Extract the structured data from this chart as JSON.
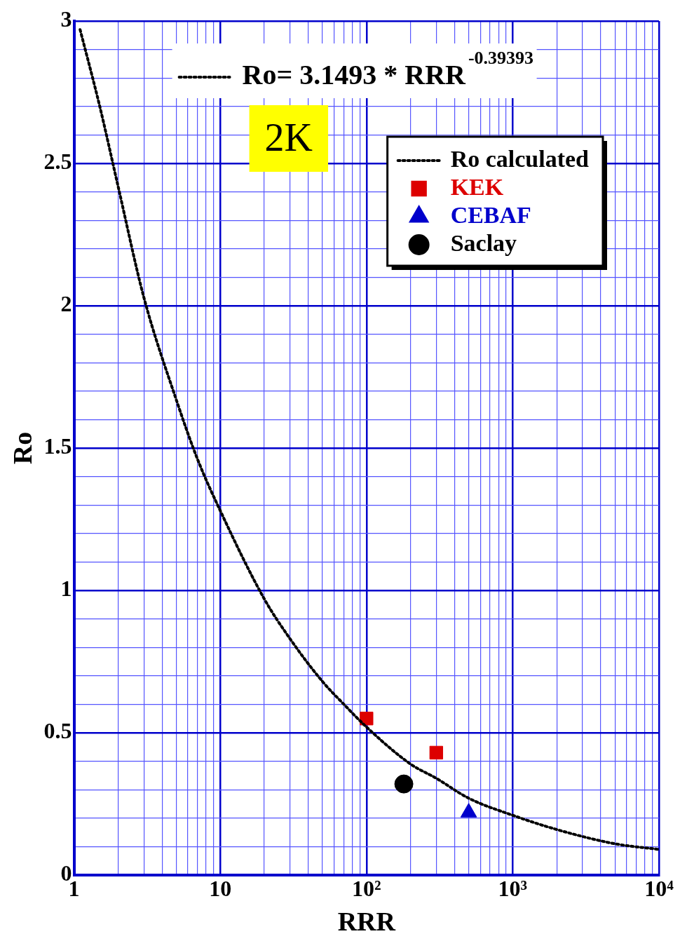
{
  "chart_data": {
    "type": "scatter",
    "xlabel": "RRR",
    "ylabel": "Ro",
    "log": "x",
    "grid": true,
    "legend": "top right",
    "annotations": [
      "Ro= 3.1493 * RRR$^{-0.39393}$",
      "2K"
    ],
    "xlim": [
      1,
      10000
    ],
    "xticks": [
      1,
      {
        "value": 2,
        "label": null
      },
      {
        "value": 3,
        "label": null
      },
      {
        "value": 4,
        "label": null
      },
      {
        "value": 5,
        "label": null
      },
      {
        "value": 6,
        "label": null
      },
      {
        "value": 7,
        "label": null
      },
      {
        "value": 8,
        "label": null
      },
      {
        "value": 9,
        "label": null
      },
      10,
      {
        "value": 20,
        "label": null
      },
      {
        "value": 30,
        "label": null
      },
      {
        "value": 40,
        "label": null
      },
      {
        "value": 50,
        "label": null
      },
      {
        "value": 60,
        "label": null
      },
      {
        "value": 70,
        "label": null
      },
      {
        "value": 80,
        "label": null
      },
      {
        "value": 90,
        "label": null
      },
      {
        "value": 100,
        "label": "10²"
      },
      {
        "value": 200,
        "label": null
      },
      {
        "value": 300,
        "label": null
      },
      {
        "value": 400,
        "label": null
      },
      {
        "value": 500,
        "label": null
      },
      {
        "value": 600,
        "label": null
      },
      {
        "value": 700,
        "label": null
      },
      {
        "value": 800,
        "label": null
      },
      {
        "value": 900,
        "label": null
      },
      {
        "value": 1000,
        "label": "10³"
      },
      {
        "value": 2000,
        "label": null
      },
      {
        "value": 3000,
        "label": null
      },
      {
        "value": 4000,
        "label": null
      },
      {
        "value": 5000,
        "label": null
      },
      {
        "value": 6000,
        "label": null
      },
      {
        "value": 7000,
        "label": null
      },
      {
        "value": 8000,
        "label": null
      },
      {
        "value": 9000,
        "label": null
      },
      {
        "value": 10000,
        "label": "10⁴"
      }
    ],
    "ylim": [
      0,
      3
    ],
    "yticks": [
      0,
      {
        "value": 0.1,
        "label": null
      },
      {
        "value": 0.2,
        "label": null
      },
      {
        "value": 0.3,
        "label": null
      },
      {
        "value": 0.4,
        "label": null
      },
      0.5,
      {
        "value": 0.6,
        "label": null
      },
      {
        "value": 0.7,
        "label": null
      },
      {
        "value": 0.8,
        "label": null
      },
      {
        "value": 0.9,
        "label": null
      },
      1,
      {
        "value": 1.1,
        "label": null
      },
      {
        "value": 1.2,
        "label": null
      },
      {
        "value": 1.3,
        "label": null
      },
      {
        "value": 1.4,
        "label": null
      },
      1.5,
      {
        "value": 1.6,
        "label": null
      },
      {
        "value": 1.7,
        "label": null
      },
      {
        "value": 1.8,
        "label": null
      },
      {
        "value": 1.9,
        "label": null
      },
      2,
      {
        "value": 2.1,
        "label": null
      },
      {
        "value": 2.2,
        "label": null
      },
      {
        "value": 2.3,
        "label": null
      },
      {
        "value": 2.4,
        "label": null
      },
      2.5,
      {
        "value": 2.6,
        "label": null
      },
      {
        "value": 2.7,
        "label": null
      },
      {
        "value": 2.8,
        "label": null
      },
      {
        "value": 2.9,
        "label": null
      },
      3
    ],
    "series": [
      {
        "name": "Ro calculated",
        "type": "line",
        "color": "#000000",
        "marker": "none",
        "line_style": "dotted",
        "x": [
          1.1,
          1.5,
          2,
          3,
          5,
          7,
          10,
          20,
          30,
          50,
          70,
          100,
          200,
          300,
          500,
          1000,
          2000,
          5000,
          10000
        ],
        "values": [
          2.97,
          2.7,
          2.42,
          2.03,
          1.67,
          1.46,
          1.28,
          0.97,
          0.83,
          0.68,
          0.6,
          0.52,
          0.39,
          0.34,
          0.27,
          0.21,
          0.16,
          0.11,
          0.09
        ]
      },
      {
        "name": "KEK",
        "color": "#dd0000",
        "marker": "square",
        "x": [
          100,
          300
        ],
        "values": [
          0.55,
          0.43
        ]
      },
      {
        "name": "CEBAF",
        "color": "#0000cc",
        "marker": "triangle",
        "x": [
          500
        ],
        "values": [
          0.22
        ]
      },
      {
        "name": "Saclay",
        "color": "#000000",
        "marker": "circle",
        "x": [
          180
        ],
        "values": [
          0.32
        ]
      }
    ]
  }
}
